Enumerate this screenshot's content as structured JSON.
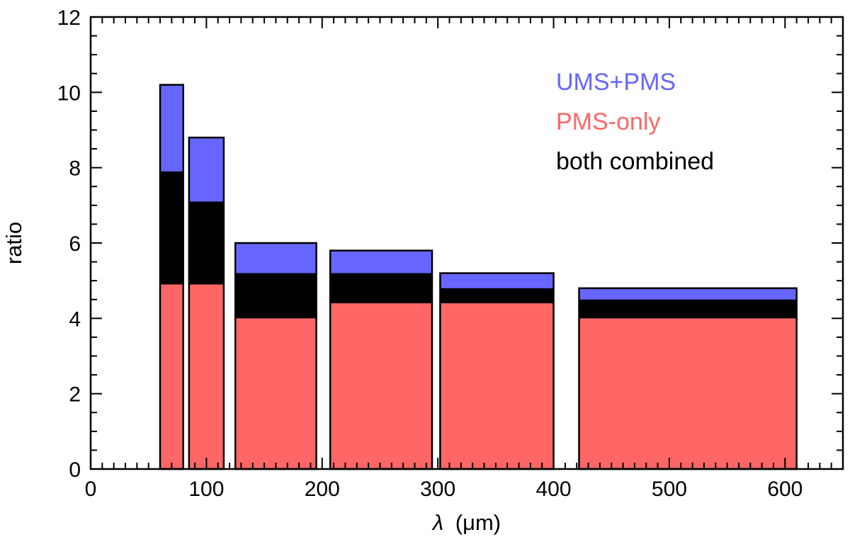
{
  "chart_data": {
    "type": "bar",
    "stacked_overlay": true,
    "xlabel_symbol": "λ",
    "xlabel_unit": "(μm)",
    "ylabel": "ratio",
    "xlim": [
      0,
      650
    ],
    "ylim": [
      0,
      12
    ],
    "x_ticks": [
      0,
      100,
      200,
      300,
      400,
      500,
      600
    ],
    "x_tick_labels": [
      "0",
      "100",
      "200",
      "300",
      "400",
      "500",
      "600"
    ],
    "x_minor_step": 10,
    "y_ticks": [
      0,
      2,
      4,
      6,
      8,
      10,
      12
    ],
    "y_tick_labels": [
      "0",
      "2",
      "4",
      "6",
      "8",
      "10",
      "12"
    ],
    "y_minor_step": 0.5,
    "bins": [
      {
        "x_start": 60,
        "x_end": 80
      },
      {
        "x_start": 85,
        "x_end": 115
      },
      {
        "x_start": 125,
        "x_end": 195
      },
      {
        "x_start": 207,
        "x_end": 295
      },
      {
        "x_start": 302,
        "x_end": 400
      },
      {
        "x_start": 422,
        "x_end": 610
      }
    ],
    "series": [
      {
        "name": "UMS+PMS",
        "color": "#6666ff",
        "values": [
          10.2,
          8.8,
          6.0,
          5.8,
          5.2,
          4.8
        ]
      },
      {
        "name": "both combined",
        "color": "#000000",
        "values": [
          7.9,
          7.1,
          5.2,
          5.2,
          4.8,
          4.5
        ]
      },
      {
        "name": "PMS-only",
        "color": "#ff6666",
        "values": [
          4.9,
          4.9,
          4.0,
          4.4,
          4.4,
          4.0
        ]
      }
    ],
    "legend_placement": "top-right",
    "legend": [
      {
        "label": "UMS+PMS",
        "color": "#6666ff"
      },
      {
        "label": "PMS-only",
        "color": "#ff6666"
      },
      {
        "label": "both combined",
        "color": "#000000"
      }
    ],
    "grid": false
  }
}
